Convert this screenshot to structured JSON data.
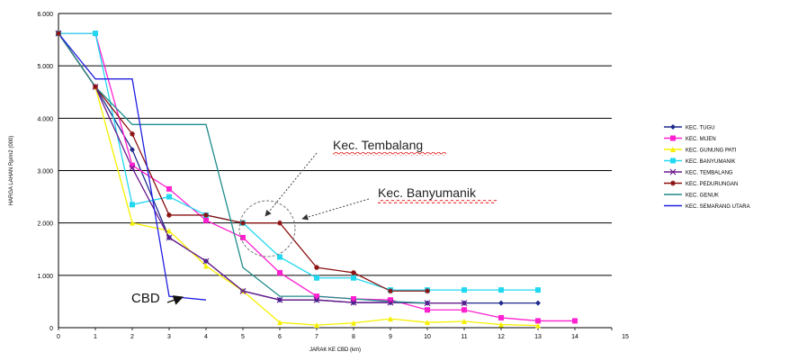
{
  "chart_data": {
    "type": "line",
    "title": "",
    "xlabel": "JARAK KE CBD (km)",
    "ylabel": "HARGA LAHAN Rp/m2 (000)",
    "x": [
      0,
      1,
      2,
      3,
      4,
      5,
      6,
      7,
      8,
      9,
      10,
      11,
      12,
      13,
      14,
      15
    ],
    "xlim": [
      0,
      15
    ],
    "ylim": [
      0,
      6000
    ],
    "yticks": [
      "0",
      "1.000",
      "2.000",
      "3.000",
      "4.000",
      "5.000",
      "6.000"
    ],
    "xticks": [
      "0",
      "1",
      "2",
      "3",
      "4",
      "5",
      "6",
      "7",
      "8",
      "9",
      "10",
      "11",
      "12",
      "13",
      "14",
      "15"
    ],
    "grid": "horizontal",
    "legend_position": "right",
    "series": [
      {
        "name": "KEC. TUGU",
        "color": "#1f2a8c",
        "marker": "diamond",
        "x": [
          0,
          1,
          2,
          3,
          4,
          5,
          6,
          7,
          8,
          9,
          10,
          11,
          12,
          13
        ],
        "y": [
          5620,
          4600,
          3400,
          1720,
          1270,
          700,
          530,
          530,
          480,
          480,
          470,
          470,
          470,
          470
        ]
      },
      {
        "name": "KEC. MIJEN",
        "color": "#ff20d0",
        "marker": "square",
        "x": [
          0,
          1,
          2,
          3,
          4,
          5,
          6,
          7,
          8,
          9,
          10,
          11,
          12,
          13,
          14
        ],
        "y": [
          5620,
          5620,
          3100,
          2650,
          2050,
          1720,
          1050,
          600,
          550,
          530,
          340,
          340,
          190,
          130,
          130
        ]
      },
      {
        "name": "KEC. GUNUNG PATI",
        "color": "#f5f000",
        "marker": "triangle",
        "x": [
          0,
          1,
          2,
          3,
          4,
          5,
          6,
          7,
          8,
          9,
          10,
          11,
          12,
          13
        ],
        "y": [
          5620,
          4600,
          2000,
          1850,
          1180,
          700,
          100,
          50,
          90,
          170,
          100,
          120,
          60,
          40
        ]
      },
      {
        "name": "KEC. BANYUMANIK",
        "color": "#22d8f0",
        "marker": "square",
        "x": [
          0,
          1,
          2,
          3,
          4,
          5,
          6,
          7,
          8,
          9,
          10,
          11,
          12,
          13
        ],
        "y": [
          5620,
          5620,
          2350,
          2500,
          2150,
          2000,
          1350,
          950,
          950,
          720,
          720,
          720,
          720,
          720
        ]
      },
      {
        "name": "KEC. TEMBALANG",
        "color": "#6a1a8e",
        "marker": "x",
        "x": [
          0,
          1,
          2,
          3,
          4,
          5,
          6,
          7,
          8,
          9,
          10,
          11
        ],
        "y": [
          5620,
          4600,
          3050,
          1720,
          1270,
          700,
          530,
          530,
          480,
          480,
          470,
          470
        ]
      },
      {
        "name": "KEC. PEDURUNGAN",
        "color": "#8b1010",
        "marker": "star",
        "x": [
          0,
          1,
          2,
          3,
          4,
          5,
          6,
          7,
          8,
          9,
          10
        ],
        "y": [
          5620,
          4600,
          3700,
          2150,
          2150,
          2000,
          2000,
          1150,
          1050,
          700,
          700
        ]
      },
      {
        "name": "KEC. GENUK",
        "color": "#1f8c8c",
        "marker": "none",
        "x": [
          0,
          1,
          2,
          3,
          4,
          5,
          6,
          7,
          8,
          9,
          10
        ],
        "y": [
          5620,
          4600,
          3880,
          3880,
          3880,
          1150,
          600,
          600,
          550,
          500,
          470
        ]
      },
      {
        "name": "KEC. SEMARANG UTARA",
        "color": "#2020e0",
        "marker": "none",
        "x": [
          0,
          1,
          2,
          3,
          4
        ],
        "y": [
          5620,
          4750,
          4750,
          600,
          530
        ]
      }
    ],
    "annotations": [
      {
        "text": "Kec. Tembalang",
        "underline": "red-wavy"
      },
      {
        "text": "Kec. Banyumanik",
        "underline": "red-wavy"
      },
      {
        "text": "CBD"
      }
    ]
  }
}
